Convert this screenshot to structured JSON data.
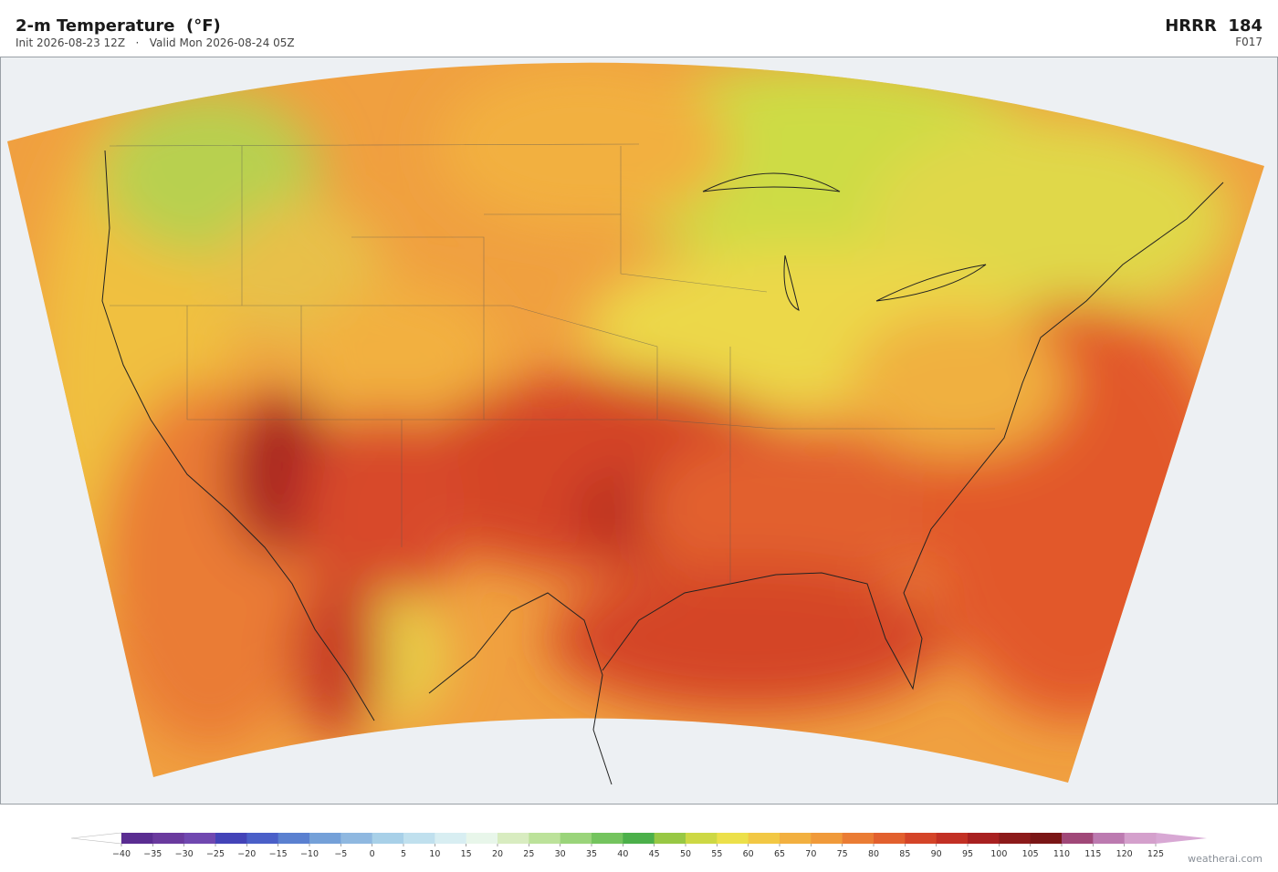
{
  "header": {
    "title": "2-m Temperature  (°F)",
    "subtitle": "Init 2026-08-23 12Z   ·   Valid Mon 2026-08-24 05Z",
    "model": "HRRR  184",
    "forecast_hour": "F017"
  },
  "colorbar": {
    "ticks": [
      {
        "value": -40,
        "label": "−40"
      },
      {
        "value": -35,
        "label": "−35"
      },
      {
        "value": -30,
        "label": "−30"
      },
      {
        "value": -25,
        "label": "−25"
      },
      {
        "value": -20,
        "label": "−20"
      },
      {
        "value": -15,
        "label": "−15"
      },
      {
        "value": -10,
        "label": "−10"
      },
      {
        "value": -5,
        "label": "−5"
      },
      0,
      5,
      10,
      15,
      20,
      25,
      30,
      35,
      40,
      45,
      50,
      55,
      60,
      65,
      70,
      75,
      80,
      85,
      90,
      95,
      100,
      105,
      110,
      115,
      120,
      125
    ],
    "colors": [
      "#5a2d91",
      "#6a3a9e",
      "#7048b0",
      "#4343b8",
      "#4a5fc8",
      "#5a80d0",
      "#74a0d8",
      "#8fb8e0",
      "#a8d0e8",
      "#c0e0ee",
      "#d8eef2",
      "#e8f6ea",
      "#d8ecc0",
      "#bce29a",
      "#9ad47a",
      "#74c45e",
      "#4cb04a",
      "#98c844",
      "#cdd844",
      "#ece04a",
      "#f2c844",
      "#f2b040",
      "#f09a3a",
      "#ea7c34",
      "#e2602e",
      "#d44428",
      "#c23024",
      "#a82020",
      "#8c1a1a",
      "#7a1616",
      "#a04878",
      "#bc7ab0",
      "#d4a0cc"
    ],
    "under_color": "#ffffff",
    "over_color": "#d8a8d4"
  },
  "watermark": "weatherai.com"
}
